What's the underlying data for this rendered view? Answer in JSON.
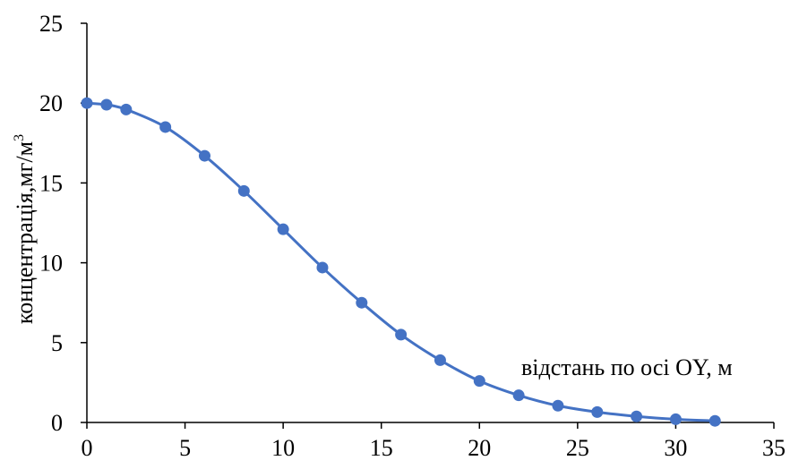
{
  "chart_data": {
    "type": "line",
    "title": "",
    "xlabel": "відстань по осі OY, м",
    "ylabel": "концентрація,мг/м",
    "ylabel_superscript": "3",
    "xlim": [
      0,
      35
    ],
    "ylim": [
      0,
      25
    ],
    "x_ticks": [
      0,
      5,
      10,
      15,
      20,
      25,
      30,
      35
    ],
    "y_ticks": [
      0,
      5,
      10,
      15,
      20,
      25
    ],
    "grid": false,
    "legend": "none",
    "series": [
      {
        "color": "#4472C4",
        "marker": "circle",
        "smooth": true,
        "x": [
          0,
          1,
          2,
          4,
          6,
          8,
          10,
          12,
          14,
          16,
          18,
          20,
          22,
          24,
          26,
          28,
          30,
          32
        ],
        "y": [
          20.0,
          19.9,
          19.6,
          18.5,
          16.7,
          14.5,
          12.1,
          9.7,
          7.5,
          5.5,
          3.9,
          2.6,
          1.7,
          1.05,
          0.65,
          0.38,
          0.2,
          0.1
        ]
      }
    ]
  }
}
